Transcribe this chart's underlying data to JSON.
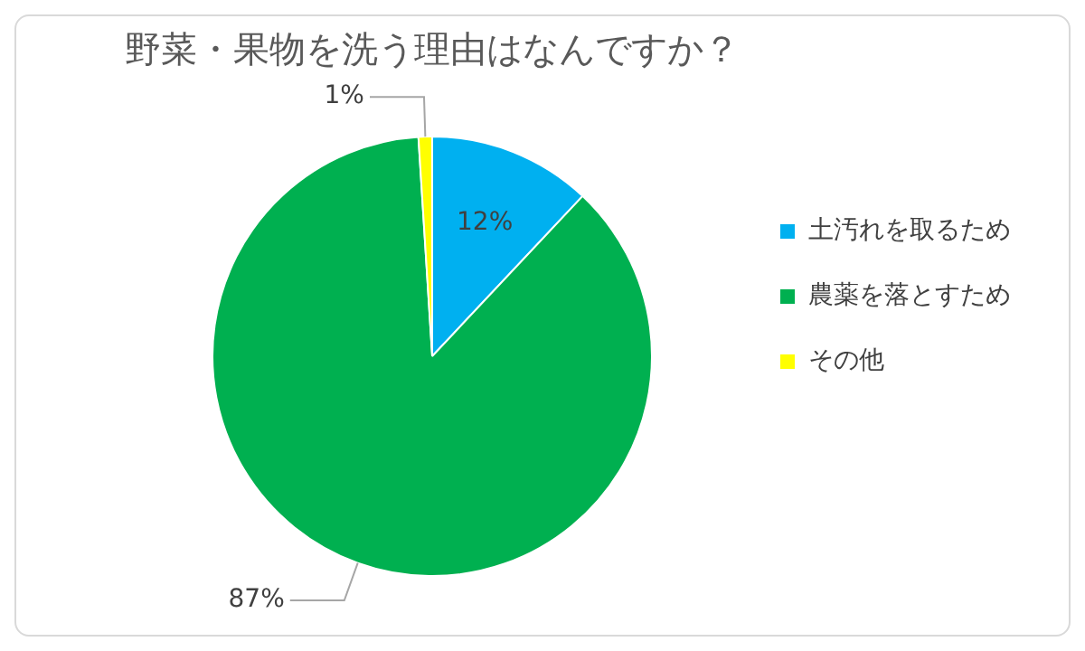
{
  "chart_data": {
    "type": "pie",
    "title": "野菜・果物を洗う理由はなんですか？",
    "categories": [
      "土汚れを取るため",
      "農薬を落とすため",
      "その他"
    ],
    "values": [
      12,
      87,
      1
    ],
    "colors": [
      "#00b0f0",
      "#00b050",
      "#ffff00"
    ],
    "value_labels": [
      "12%",
      "87%",
      "1%"
    ],
    "legend": "right"
  }
}
